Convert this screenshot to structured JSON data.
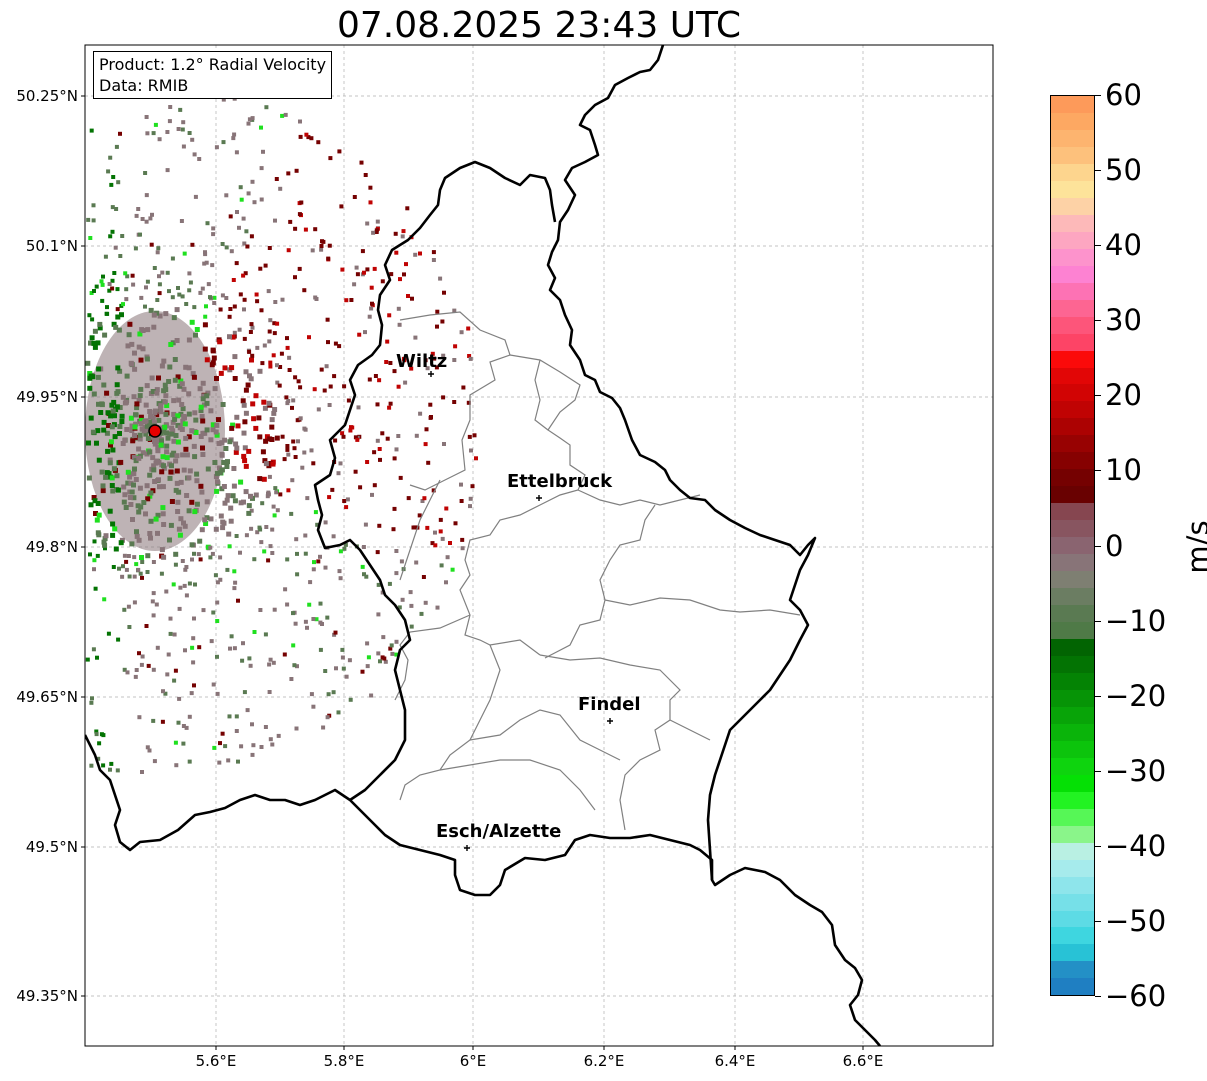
{
  "title": "07.08.2025 23:43 UTC",
  "info": {
    "product": "Product: 1.2° Radial Velocity",
    "data_source": "Data: RMIB"
  },
  "lat_ticks": [
    "50.25°N",
    "50.1°N",
    "49.95°N",
    "49.8°N",
    "49.65°N",
    "49.5°N",
    "49.35°N"
  ],
  "lon_ticks": [
    "5.6°E",
    "5.8°E",
    "6°E",
    "6.2°E",
    "6.4°E",
    "6.6°E"
  ],
  "cities": [
    {
      "name": "Wiltz"
    },
    {
      "name": "Ettelbruck"
    },
    {
      "name": "Findel"
    },
    {
      "name": "Esch/Alzette"
    }
  ],
  "colorbar": {
    "label": "m/s",
    "ticks": [
      "60",
      "50",
      "40",
      "30",
      "20",
      "10",
      "0",
      "−10",
      "−20",
      "−30",
      "−40",
      "−50",
      "−60"
    ],
    "range": [
      -60,
      60
    ],
    "colors_top_to_bottom": [
      "#fd9a5a",
      "#fda862",
      "#fdb46f",
      "#fdc17c",
      "#fdd58e",
      "#fde39a",
      "#fdd2a6",
      "#fdb9b9",
      "#fda6c1",
      "#fd93cc",
      "#fd82d2",
      "#fd72b4",
      "#fd6592",
      "#fd557a",
      "#fd4466",
      "#fb0a0a",
      "#e20606",
      "#d20404",
      "#c00303",
      "#ac0202",
      "#980202",
      "#860101",
      "#750101",
      "#690101",
      "#864650",
      "#885560",
      "#8a6470",
      "#887478",
      "#7e7f72",
      "#6b7d62",
      "#5a7a52",
      "#4f7a47",
      "#026402",
      "#037303",
      "#048304",
      "#069406",
      "#08a408",
      "#0ab40a",
      "#0cc40c",
      "#0ed40e",
      "#05e005",
      "#22f322",
      "#56f756",
      "#8af58a",
      "#b9f0e3",
      "#a6ebec",
      "#8ee5eb",
      "#76e0e8",
      "#5ddbe5",
      "#3ed6e0",
      "#28c2d6",
      "#2390c6",
      "#1f7fc2"
    ]
  },
  "map_colors": {
    "outward_dark": "#750101",
    "outward_red": "#c00303",
    "near_zero": "#887478",
    "inward_green": "#5a7a52",
    "dark_green": "#037303",
    "radar_marker": "#e60000"
  }
}
